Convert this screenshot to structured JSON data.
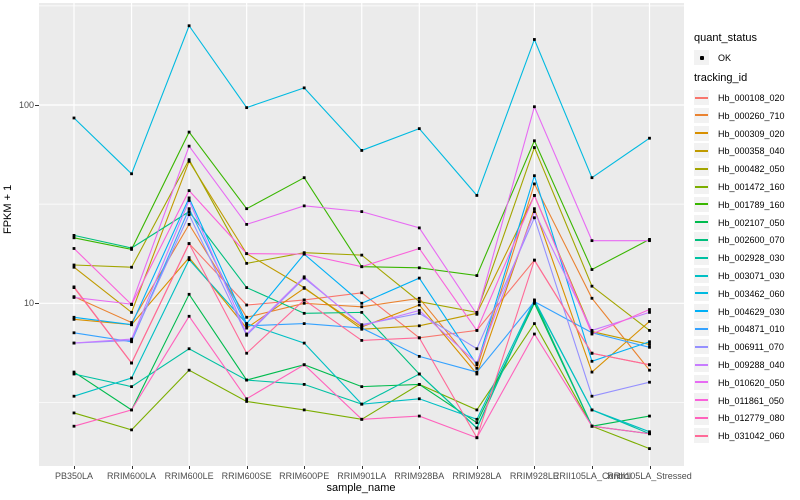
{
  "figure": {
    "background": "#FFFFFF",
    "panel_background": "#EBEBEB",
    "gridline_color": "#FFFFFF",
    "point_color": "#000000",
    "tick_label_color": "#4D4D4D"
  },
  "legend": {
    "quant_status_title": "quant_status",
    "quant_status_items": [
      {
        "label": "OK",
        "symbol": "black-point"
      }
    ],
    "tracking_id_title": "tracking_id"
  },
  "chart_data": {
    "type": "line",
    "title": "",
    "xlabel": "sample_name",
    "ylabel": "FPKM + 1",
    "y_scale": "log10",
    "ylim": [
      1.5,
      320
    ],
    "y_major_ticks": [
      {
        "label": "100",
        "value": 100
      },
      {
        "label": "10",
        "value": 10
      }
    ],
    "y_minor_tick_values": [
      3.162,
      31.623,
      316.228
    ],
    "legend_position": "right",
    "grid": true,
    "point_marker": "small-black-square",
    "categories": [
      "PB350LA",
      "RRIM600LA",
      "RRIM600LE",
      "RRIM600SE",
      "RRIM600PE",
      "RRIM901LA",
      "RRIM928BA",
      "RRIM928LA",
      "RRIM928LE",
      "RRII105LA_Control",
      "RRII105LA_Stressed"
    ],
    "series": [
      {
        "name": "Hb_000108_020",
        "quant_status": "OK",
        "color": "#F8766D",
        "values": [
          12.0,
          5.0,
          20,
          9.8,
          10.4,
          11.3,
          6.7,
          7.3,
          16.5,
          5.6,
          4.9
        ]
      },
      {
        "name": "Hb_000260_710",
        "quant_status": "OK",
        "color": "#EA8331",
        "values": [
          10.8,
          8.0,
          25,
          8.5,
          10.0,
          9.6,
          10.6,
          4.7,
          40,
          10.6,
          4.6
        ]
      },
      {
        "name": "Hb_000309_020",
        "quant_status": "OK",
        "color": "#D89000",
        "values": [
          8.3,
          7.8,
          17,
          7.5,
          11.9,
          7.6,
          9.8,
          4.4,
          30,
          4.5,
          8.1
        ]
      },
      {
        "name": "Hb_000358_040",
        "quant_status": "OK",
        "color": "#C09B00",
        "values": [
          15.2,
          9.0,
          52,
          17.8,
          12.0,
          7.4,
          7.7,
          8.9,
          35,
          7.2,
          6.2
        ]
      },
      {
        "name": "Hb_000482_050",
        "quant_status": "OK",
        "color": "#A3A500",
        "values": [
          15.6,
          15.2,
          53,
          15.9,
          18.0,
          17.5,
          10.2,
          9.0,
          61,
          12.2,
          7.3
        ]
      },
      {
        "name": "Hb_001472_160",
        "quant_status": "OK",
        "color": "#7CAE00",
        "values": [
          2.8,
          2.3,
          4.6,
          3.2,
          2.9,
          2.6,
          3.9,
          2.9,
          7.9,
          2.4,
          1.85
        ]
      },
      {
        "name": "Hb_001789_160",
        "quant_status": "OK",
        "color": "#39B600",
        "values": [
          21.4,
          18.7,
          73,
          30,
          43,
          15.3,
          15.1,
          13.8,
          66,
          14.8,
          21
        ]
      },
      {
        "name": "Hb_002107_050",
        "quant_status": "OK",
        "color": "#00BB4E",
        "values": [
          4.5,
          2.9,
          11.1,
          4.1,
          4.9,
          3.8,
          3.9,
          2.5,
          10.0,
          2.4,
          2.7
        ]
      },
      {
        "name": "Hb_002600_070",
        "quant_status": "OK",
        "color": "#00BF7D",
        "values": [
          22,
          19,
          29,
          12,
          8.9,
          9.0,
          4.4,
          2.35,
          10.3,
          2.4,
          2.2
        ]
      },
      {
        "name": "Hb_002928_030",
        "quant_status": "OK",
        "color": "#00C1A3",
        "values": [
          4.4,
          3.8,
          5.9,
          4.1,
          3.9,
          3.1,
          4.4,
          2.35,
          10.3,
          2.9,
          2.2
        ]
      },
      {
        "name": "Hb_003071_030",
        "quant_status": "OK",
        "color": "#00BFC4",
        "values": [
          3.4,
          4.2,
          16.6,
          7.9,
          6.3,
          3.1,
          3.3,
          2.6,
          10.4,
          2.9,
          2.25
        ]
      },
      {
        "name": "Hb_003462_060",
        "quant_status": "OK",
        "color": "#00BAE0",
        "values": [
          86,
          45,
          251,
          97,
          122,
          59,
          76,
          35,
          214,
          43,
          68
        ]
      },
      {
        "name": "Hb_004629_030",
        "quant_status": "OK",
        "color": "#00B0F6",
        "values": [
          8.5,
          7.8,
          34,
          7.9,
          17.7,
          10.0,
          13.4,
          4.9,
          44,
          5.1,
          6.4
        ]
      },
      {
        "name": "Hb_004871_010",
        "quant_status": "OK",
        "color": "#35A2FF",
        "values": [
          7.1,
          6.4,
          30,
          7.7,
          7.9,
          7.5,
          5.4,
          4.5,
          10.2,
          7.1,
          6.0
        ]
      },
      {
        "name": "Hb_006911_070",
        "quant_status": "OK",
        "color": "#9590FF",
        "values": [
          6.3,
          6.5,
          28,
          6.9,
          13.4,
          7.8,
          8.9,
          5.9,
          27,
          3.4,
          4.0
        ]
      },
      {
        "name": "Hb_009288_040",
        "quant_status": "OK",
        "color": "#C77CFF",
        "values": [
          6.3,
          6.6,
          33,
          7.0,
          13.6,
          7.7,
          9.2,
          5.0,
          29,
          7.3,
          9.0
        ]
      },
      {
        "name": "Hb_010620_050",
        "quant_status": "OK",
        "color": "#E76BF3",
        "values": [
          10.7,
          9.9,
          62,
          25,
          31,
          29,
          24,
          8.8,
          98,
          20.7,
          20.7
        ]
      },
      {
        "name": "Hb_011861_050",
        "quant_status": "OK",
        "color": "#FA62DB",
        "values": [
          18.9,
          9.85,
          37,
          17.8,
          17.7,
          15.3,
          18.9,
          7.3,
          35,
          7.0,
          9.3
        ]
      },
      {
        "name": "Hb_012779_080",
        "quant_status": "OK",
        "color": "#FF62BC",
        "values": [
          2.4,
          2.9,
          8.6,
          3.3,
          4.9,
          2.6,
          2.7,
          2.1,
          7.0,
          2.4,
          2.2
        ]
      },
      {
        "name": "Hb_031042_060",
        "quant_status": "OK",
        "color": "#FF6A98",
        "values": [
          12.1,
          5.0,
          20,
          5.6,
          10.4,
          6.5,
          6.7,
          2.1,
          16.5,
          5.6,
          4.9
        ]
      }
    ]
  }
}
